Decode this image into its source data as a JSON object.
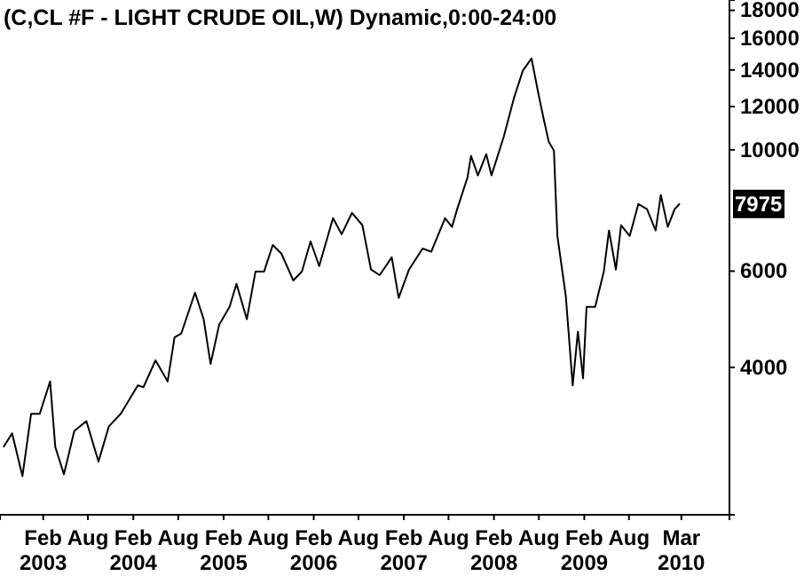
{
  "chart_data": {
    "type": "line",
    "title": "(C,CL #F - LIGHT CRUDE OIL,W) Dynamic,0:00-24:00",
    "log": true,
    "grid": false,
    "line_style": "solid",
    "marker": "none",
    "xlim": [
      "2002-08-10",
      "2010-09-12"
    ],
    "xticks": [
      {
        "value": "2003-02",
        "label": "Feb 2003"
      },
      {
        "value": "2003-08",
        "label": "Aug"
      },
      {
        "value": "2004-02",
        "label": "Feb 2004"
      },
      {
        "value": "2004-08",
        "label": "Aug"
      },
      {
        "value": "2005-02",
        "label": "Feb 2005"
      },
      {
        "value": "2005-08",
        "label": "Aug"
      },
      {
        "value": "2006-02",
        "label": "Feb 2006"
      },
      {
        "value": "2006-08",
        "label": "Aug"
      },
      {
        "value": "2007-02",
        "label": "Feb 2007"
      },
      {
        "value": "2007-08",
        "label": "Aug"
      },
      {
        "value": "2008-02",
        "label": "Feb 2008"
      },
      {
        "value": "2008-08",
        "label": "Aug"
      },
      {
        "value": "2009-02",
        "label": "Feb 2009"
      },
      {
        "value": "2009-08",
        "label": "Aug"
      },
      {
        "value": "2010-03",
        "label": "Mar 2010"
      }
    ],
    "ylim": [
      2150,
      18800
    ],
    "yticks": [
      4000,
      6000,
      10000,
      12000,
      14000,
      16000,
      18000
    ],
    "annotations": [
      {
        "text": "7975",
        "x": "2010-02-23",
        "y": 7975
      }
    ],
    "series": [
      {
        "color": "#000000",
        "x": [
          "2002-08-24",
          "2002-09-28",
          "2002-11-09",
          "2002-12-14",
          "2003-01-18",
          "2003-03-01",
          "2003-03-22",
          "2003-04-26",
          "2003-06-07",
          "2003-07-26",
          "2003-09-13",
          "2003-10-25",
          "2003-12-12",
          "2004-02-20",
          "2004-03-13",
          "2004-05-01",
          "2004-06-19",
          "2004-07-17",
          "2004-08-13",
          "2004-10-08",
          "2004-11-12",
          "2004-12-10",
          "2005-01-14",
          "2005-02-25",
          "2005-03-25",
          "2005-05-06",
          "2005-06-10",
          "2005-07-15",
          "2005-08-19",
          "2005-09-23",
          "2005-11-10",
          "2005-12-15",
          "2006-01-19",
          "2006-02-23",
          "2006-04-20",
          "2006-05-25",
          "2006-07-06",
          "2006-08-17",
          "2006-09-21",
          "2006-10-26",
          "2006-12-14",
          "2007-01-11",
          "2007-02-22",
          "2007-04-18",
          "2007-05-23",
          "2007-07-18",
          "2007-08-15",
          "2007-09-05",
          "2007-09-19",
          "2007-10-17",
          "2007-10-31",
          "2007-11-28",
          "2008-01-01",
          "2008-01-22",
          "2008-03-12",
          "2008-04-23",
          "2008-05-28",
          "2008-07-02",
          "2008-07-30",
          "2008-08-20",
          "2008-09-10",
          "2008-10-01",
          "2008-10-08",
          "2008-10-15",
          "2008-11-18",
          "2008-12-16",
          "2009-01-06",
          "2009-01-27",
          "2009-02-10",
          "2009-03-17",
          "2009-04-21",
          "2009-05-12",
          "2009-06-09",
          "2009-06-30",
          "2009-08-04",
          "2009-09-08",
          "2009-10-13",
          "2009-11-17",
          "2009-12-08",
          "2010-01-05",
          "2010-02-02",
          "2010-02-23"
        ],
        "values": [
          2860,
          3030,
          2530,
          3290,
          3290,
          3770,
          2860,
          2550,
          3060,
          3190,
          2690,
          3120,
          3290,
          3710,
          3680,
          4120,
          3770,
          4540,
          4610,
          5480,
          4900,
          4060,
          4790,
          5160,
          5690,
          4900,
          5990,
          5990,
          6700,
          6460,
          5770,
          5990,
          6800,
          6130,
          7500,
          7010,
          7670,
          7280,
          6040,
          5900,
          6360,
          5360,
          6040,
          6600,
          6510,
          7500,
          7230,
          7790,
          8150,
          8910,
          9750,
          8980,
          9820,
          8980,
          10580,
          12480,
          13960,
          14700,
          12670,
          11410,
          10350,
          9970,
          8270,
          6960,
          5400,
          3710,
          4650,
          3820,
          5160,
          5160,
          5990,
          7120,
          6040,
          7280,
          6960,
          7960,
          7790,
          7120,
          8270,
          7230,
          7790,
          7975
        ]
      }
    ]
  }
}
